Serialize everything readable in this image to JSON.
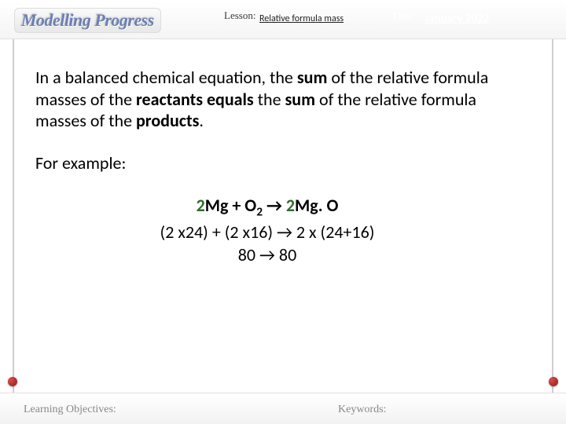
{
  "header": {
    "badge": "Modelling Progress",
    "lesson_label": "Lesson:",
    "lesson_value": "Relative formula mass",
    "date_label": "Date:",
    "date_value": "January 2022"
  },
  "body": {
    "paragraph_parts": {
      "p1": "In a balanced chemical equation, the ",
      "p2": "sum",
      "p3": " of the relative formula masses of the ",
      "p4": "reactants equals",
      "p5": " the ",
      "p6": "sum",
      "p7": " of the relative formula masses of the ",
      "p8": "products",
      "p9": "."
    },
    "example_label": "For example:",
    "equation": {
      "coef1": "2",
      "r1": "Mg + O",
      "sub1": "2",
      "arrow": " → ",
      "coef2": "2",
      "r2": "Mg. O",
      "line2": "(2 x24) + (2 x16) →  2 x (24+16)",
      "line3": "80 → 80"
    }
  },
  "footer": {
    "learning_objectives": "Learning Objectives:",
    "keywords": "Keywords:"
  },
  "colors": {
    "banner": "#961818",
    "coef": "#316b2e",
    "badge_text": "#6b7fb3"
  }
}
